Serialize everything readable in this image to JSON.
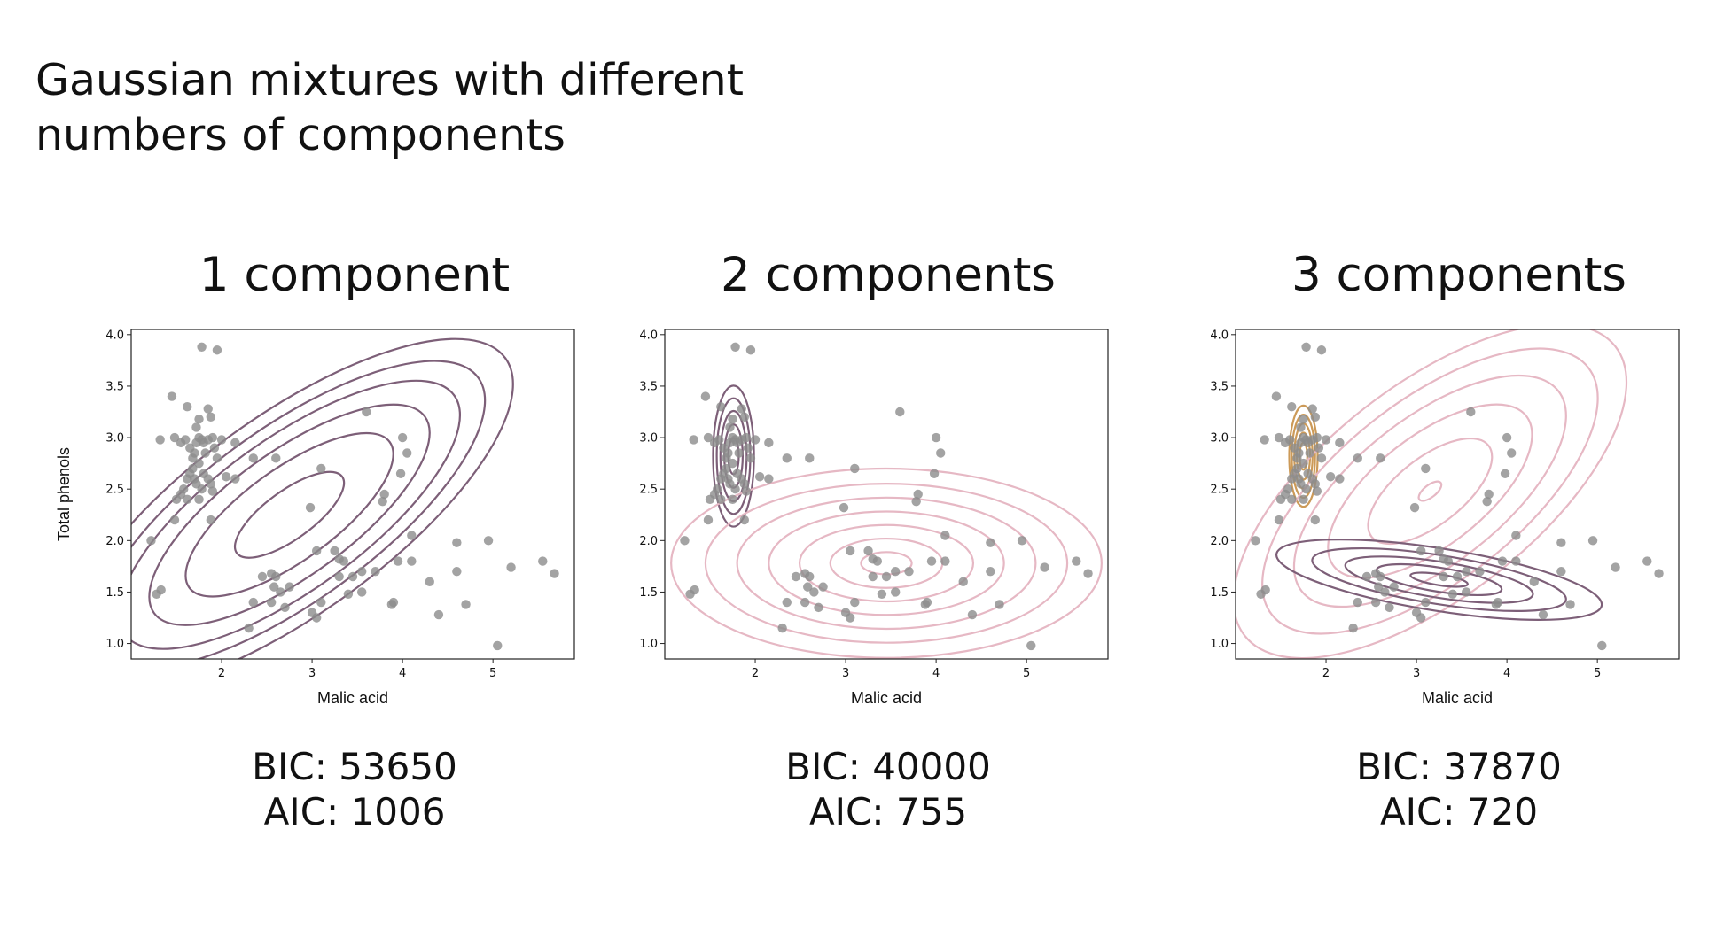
{
  "title_lines": [
    "Gaussian mixtures with different",
    "numbers of components"
  ],
  "colors": {
    "points": "#8c8c8c",
    "comp_dark": "#7d5f78",
    "comp_pink": "#e6b8c4",
    "comp_orange": "#cc9a58",
    "axis": "#222222"
  },
  "panels": [
    {
      "title": "1 component",
      "bic": "BIC: 53650",
      "aic": "AIC: 1006",
      "xlabel": "Malic acid",
      "ylabel": "Total phenols"
    },
    {
      "title": "2 components",
      "bic": "BIC: 40000",
      "aic": "AIC: 755",
      "xlabel": "Malic acid",
      "ylabel": ""
    },
    {
      "title": "3 components",
      "bic": "BIC: 37870",
      "aic": "AIC: 720",
      "xlabel": "Malic acid",
      "ylabel": ""
    }
  ],
  "chart_data": [
    {
      "type": "scatter",
      "title": "1 component",
      "xlabel": "Malic acid",
      "ylabel": "Total phenols",
      "xlim": [
        1.0,
        5.9
      ],
      "ylim": [
        0.85,
        4.05
      ],
      "xticks": [
        2,
        3,
        4,
        5
      ],
      "yticks": [
        1.0,
        1.5,
        2.0,
        2.5,
        3.0,
        3.5,
        4.0
      ],
      "points": [
        [
          1.78,
          3.88
        ],
        [
          1.95,
          3.85
        ],
        [
          1.45,
          3.4
        ],
        [
          1.62,
          3.3
        ],
        [
          1.72,
          3.1
        ],
        [
          1.75,
          3.18
        ],
        [
          1.85,
          3.28
        ],
        [
          1.88,
          3.2
        ],
        [
          1.32,
          2.98
        ],
        [
          1.48,
          3.0
        ],
        [
          1.55,
          2.95
        ],
        [
          1.6,
          2.98
        ],
        [
          1.65,
          2.9
        ],
        [
          1.68,
          2.8
        ],
        [
          1.7,
          2.85
        ],
        [
          1.72,
          2.95
        ],
        [
          1.75,
          3.0
        ],
        [
          1.78,
          2.98
        ],
        [
          1.8,
          2.95
        ],
        [
          1.82,
          2.85
        ],
        [
          1.85,
          2.98
        ],
        [
          1.9,
          3.0
        ],
        [
          1.92,
          2.9
        ],
        [
          1.95,
          2.8
        ],
        [
          2.0,
          2.98
        ],
        [
          2.15,
          2.95
        ],
        [
          1.62,
          2.6
        ],
        [
          1.65,
          2.65
        ],
        [
          1.68,
          2.7
        ],
        [
          1.7,
          2.6
        ],
        [
          1.72,
          2.55
        ],
        [
          1.75,
          2.75
        ],
        [
          1.78,
          2.5
        ],
        [
          1.8,
          2.65
        ],
        [
          1.85,
          2.6
        ],
        [
          1.88,
          2.55
        ],
        [
          1.9,
          2.48
        ],
        [
          1.55,
          2.45
        ],
        [
          1.58,
          2.5
        ],
        [
          1.62,
          2.4
        ],
        [
          1.75,
          2.4
        ],
        [
          2.05,
          2.62
        ],
        [
          2.15,
          2.6
        ],
        [
          2.35,
          2.8
        ],
        [
          2.6,
          2.8
        ],
        [
          1.5,
          2.4
        ],
        [
          1.48,
          2.2
        ],
        [
          1.88,
          2.2
        ],
        [
          2.98,
          2.32
        ],
        [
          3.1,
          2.7
        ],
        [
          3.6,
          3.25
        ],
        [
          4.0,
          3.0
        ],
        [
          4.05,
          2.85
        ],
        [
          3.98,
          2.65
        ],
        [
          3.8,
          2.45
        ],
        [
          3.78,
          2.38
        ],
        [
          4.1,
          2.05
        ],
        [
          3.05,
          1.9
        ],
        [
          3.25,
          1.9
        ],
        [
          3.3,
          1.82
        ],
        [
          3.35,
          1.8
        ],
        [
          3.55,
          1.7
        ],
        [
          3.45,
          1.65
        ],
        [
          3.3,
          1.65
        ],
        [
          3.7,
          1.7
        ],
        [
          3.95,
          1.8
        ],
        [
          4.1,
          1.8
        ],
        [
          4.6,
          1.98
        ],
        [
          4.6,
          1.7
        ],
        [
          4.95,
          2.0
        ],
        [
          2.45,
          1.65
        ],
        [
          2.55,
          1.68
        ],
        [
          2.6,
          1.65
        ],
        [
          2.58,
          1.55
        ],
        [
          2.75,
          1.55
        ],
        [
          2.65,
          1.5
        ],
        [
          2.55,
          1.4
        ],
        [
          2.35,
          1.4
        ],
        [
          2.7,
          1.35
        ],
        [
          3.0,
          1.3
        ],
        [
          3.05,
          1.25
        ],
        [
          3.1,
          1.4
        ],
        [
          3.4,
          1.48
        ],
        [
          3.55,
          1.5
        ],
        [
          3.9,
          1.4
        ],
        [
          3.88,
          1.38
        ],
        [
          4.3,
          1.6
        ],
        [
          4.4,
          1.28
        ],
        [
          4.7,
          1.38
        ],
        [
          2.3,
          1.15
        ],
        [
          1.22,
          2.0
        ],
        [
          1.28,
          1.48
        ],
        [
          1.33,
          1.52
        ],
        [
          5.2,
          1.74
        ],
        [
          5.55,
          1.8
        ],
        [
          5.68,
          1.68
        ],
        [
          5.05,
          0.98
        ]
      ],
      "components": [
        {
          "color": "#7d5f78",
          "center": [
            2.75,
            2.25
          ],
          "angle_deg": -36,
          "rx": [
            0.72,
            1.37,
            1.85,
            2.25,
            2.58,
            2.95
          ],
          "ratio": 0.37
        }
      ]
    },
    {
      "type": "scatter",
      "title": "2 components",
      "xlabel": "Malic acid",
      "ylabel": "",
      "xlim": [
        1.0,
        5.9
      ],
      "ylim": [
        0.85,
        4.05
      ],
      "xticks": [
        2,
        3,
        4,
        5
      ],
      "yticks": [
        1.0,
        1.5,
        2.0,
        2.5,
        3.0,
        3.5,
        4.0
      ],
      "points": "same as panel 1",
      "components": [
        {
          "color": "#7d5f78",
          "center": [
            1.76,
            2.82
          ],
          "angle_deg": -90,
          "rx": [
            0.2,
            0.35,
            0.5,
            0.64,
            0.78
          ],
          "ratio": 0.29
        },
        {
          "color": "#e6b8c4",
          "center": [
            3.45,
            1.78
          ],
          "angle_deg": 0,
          "rx": [
            0.28,
            0.62,
            0.96,
            1.3,
            1.65,
            2.0,
            2.38
          ],
          "ratio": 0.44
        }
      ]
    },
    {
      "type": "scatter",
      "title": "3 components",
      "xlabel": "Malic acid",
      "ylabel": "",
      "xlim": [
        1.0,
        5.9
      ],
      "ylim": [
        0.85,
        4.05
      ],
      "xticks": [
        2,
        3,
        4,
        5
      ],
      "yticks": [
        1.0,
        1.5,
        2.0,
        2.5,
        3.0,
        3.5,
        4.0
      ],
      "points": "same as panel 1",
      "components": [
        {
          "color": "#cc9a58",
          "center": [
            1.75,
            2.82
          ],
          "angle_deg": -90,
          "rx": [
            0.15,
            0.26,
            0.36,
            0.46,
            0.56
          ],
          "ratio": 0.28
        },
        {
          "color": "#e6b8c4",
          "center": [
            3.15,
            2.48
          ],
          "angle_deg": -38,
          "rx": [
            0.15,
            0.82,
            1.35,
            1.8,
            2.22,
            2.6
          ],
          "ratio": 0.45
        },
        {
          "color": "#7d5f78",
          "center": [
            3.25,
            1.62
          ],
          "angle_deg": 9,
          "rx": [
            0.32,
            0.7,
            1.05,
            1.42,
            1.82
          ],
          "ratio": 0.19
        }
      ]
    }
  ]
}
